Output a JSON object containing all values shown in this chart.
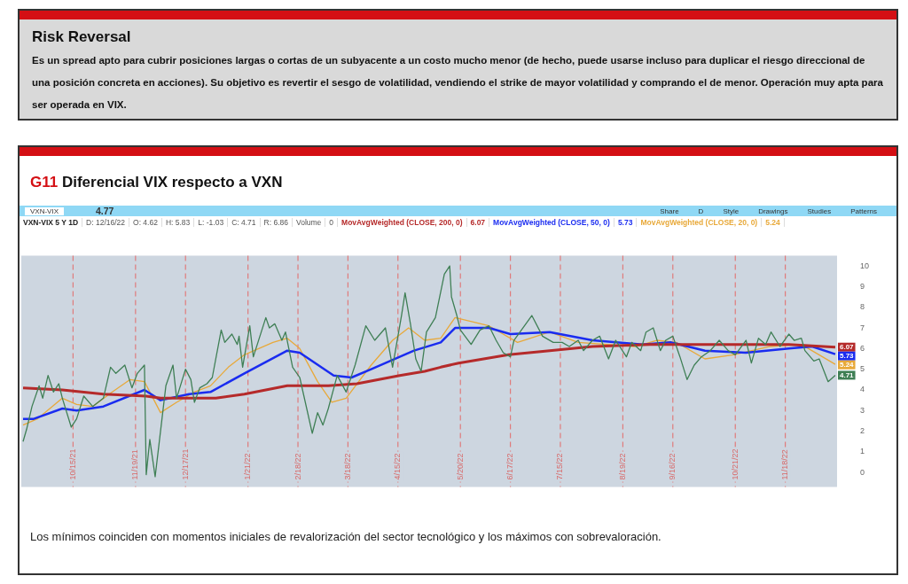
{
  "chart_data": [
    {
      "type": "other",
      "title": "Risk Reversal",
      "annotations": [
        "Es un spread apto para cubrir posiciones largas o cortas de un subyacente a un costo mucho menor (de hecho, puede usarse incluso para duplicar el riesgo direccional de una posición concreta en acciones). Su objetivo es revertir el sesgo de volatilidad, vendiendo el strike de mayor volatilidad y comprando el de menor. Operación muy apta para ser operada en VIX."
      ]
    },
    {
      "type": "line",
      "title": "G11 Diferencial VIX respecto a VXN",
      "annotations": [
        "VXN-VIX",
        "4.77",
        "Share",
        "D",
        "Style",
        "Drawings",
        "Studies",
        "Patterns",
        "VXN-VIX 5 Y 1D",
        "D: 12/16/22",
        "O: 4.62",
        "H: 5.83",
        "L: -1.03",
        "C: 4.71",
        "R: 6.86",
        "Volume",
        "0",
        "Los mínimos coinciden con momentos iniciales de revalorización del sector tecnológico y los máximos con sobrevaloración."
      ],
      "xlim": [
        "2021-09-16",
        "2022-12-17"
      ],
      "xticks": [
        {
          "value": "2021-10-15",
          "label": "10/15/21"
        },
        {
          "value": "2021-11-19",
          "label": "11/19/21"
        },
        {
          "value": "2021-12-17",
          "label": "12/17/21"
        },
        {
          "value": "2022-01-21",
          "label": "1/21/22"
        },
        {
          "value": "2022-02-18",
          "label": "2/18/22"
        },
        {
          "value": "2022-03-18",
          "label": "3/18/22"
        },
        {
          "value": "2022-04-15",
          "label": "4/15/22"
        },
        {
          "value": "2022-05-20",
          "label": "5/20/22"
        },
        {
          "value": "2022-06-17",
          "label": "6/17/22"
        },
        {
          "value": "2022-07-15",
          "label": "7/15/22"
        },
        {
          "value": "2022-08-19",
          "label": "8/19/22"
        },
        {
          "value": "2022-09-16",
          "label": "9/16/22"
        },
        {
          "value": "2022-10-21",
          "label": "10/21/22"
        },
        {
          "value": "2022-11-18",
          "label": "11/18/22"
        }
      ],
      "ylim": [
        -0.7,
        10.5
      ],
      "yticks": [
        0,
        1,
        2,
        3,
        4,
        5,
        6,
        7,
        8,
        9,
        10
      ],
      "legend": "top",
      "ref_lines": [
        {
          "axis": "x",
          "value": "2021-10-15",
          "color": "#e07b7b",
          "line_style": "dashed"
        },
        {
          "axis": "x",
          "value": "2021-11-19",
          "color": "#e07b7b",
          "line_style": "dashed"
        },
        {
          "axis": "x",
          "value": "2021-12-17",
          "color": "#e07b7b",
          "line_style": "dashed"
        },
        {
          "axis": "x",
          "value": "2022-01-21",
          "color": "#e07b7b",
          "line_style": "dashed"
        },
        {
          "axis": "x",
          "value": "2022-02-18",
          "color": "#e07b7b",
          "line_style": "dashed"
        },
        {
          "axis": "x",
          "value": "2022-03-18",
          "color": "#e07b7b",
          "line_style": "dashed"
        },
        {
          "axis": "x",
          "value": "2022-04-15",
          "color": "#e07b7b",
          "line_style": "dashed"
        },
        {
          "axis": "x",
          "value": "2022-05-20",
          "color": "#e07b7b",
          "line_style": "dashed"
        },
        {
          "axis": "x",
          "value": "2022-06-17",
          "color": "#e07b7b",
          "line_style": "dashed"
        },
        {
          "axis": "x",
          "value": "2022-07-15",
          "color": "#e07b7b",
          "line_style": "dashed"
        },
        {
          "axis": "x",
          "value": "2022-08-19",
          "color": "#e07b7b",
          "line_style": "dashed"
        },
        {
          "axis": "x",
          "value": "2022-09-16",
          "color": "#e07b7b",
          "line_style": "dashed"
        },
        {
          "axis": "x",
          "value": "2022-10-21",
          "color": "#e07b7b",
          "line_style": "dashed"
        },
        {
          "axis": "x",
          "value": "2022-11-18",
          "color": "#e07b7b",
          "line_style": "dashed"
        }
      ],
      "series": [
        {
          "color": "#3f7f55",
          "x": [
            "2021-09-17",
            "2021-09-19",
            "2021-09-22",
            "2021-09-26",
            "2021-09-28",
            "2021-10-01",
            "2021-10-04",
            "2021-10-07",
            "2021-10-09",
            "2021-10-14",
            "2021-10-17",
            "2021-10-21",
            "2021-10-26",
            "2021-11-01",
            "2021-11-05",
            "2021-11-08",
            "2021-11-13",
            "2021-11-17",
            "2021-11-20",
            "2021-11-24",
            "2021-11-25",
            "2021-11-27",
            "2021-11-30",
            "2021-12-06",
            "2021-12-10",
            "2021-12-12",
            "2021-12-17",
            "2021-12-20",
            "2021-12-22",
            "2021-12-25",
            "2021-12-29",
            "2022-01-01",
            "2022-01-06",
            "2022-01-08",
            "2022-01-12",
            "2022-01-15",
            "2022-01-16",
            "2022-01-18",
            "2022-01-22",
            "2022-01-24",
            "2022-01-31",
            "2022-02-02",
            "2022-02-05",
            "2022-02-09",
            "2022-02-11",
            "2022-02-15",
            "2022-02-19",
            "2022-02-26",
            "2022-03-01",
            "2022-03-04",
            "2022-03-07",
            "2022-03-12",
            "2022-03-17",
            "2022-03-22",
            "2022-03-28",
            "2022-04-02",
            "2022-04-08",
            "2022-04-12",
            "2022-04-17",
            "2022-04-19",
            "2022-04-22",
            "2022-04-25",
            "2022-04-28",
            "2022-05-01",
            "2022-05-06",
            "2022-05-11",
            "2022-05-14",
            "2022-05-15",
            "2022-05-18",
            "2022-05-20",
            "2022-05-26",
            "2022-05-31",
            "2022-06-05",
            "2022-06-09",
            "2022-06-13",
            "2022-06-17",
            "2022-06-19",
            "2022-06-29",
            "2022-07-05",
            "2022-07-11",
            "2022-07-16",
            "2022-07-20",
            "2022-07-25",
            "2022-07-28",
            "2022-08-02",
            "2022-08-06",
            "2022-08-11",
            "2022-08-15",
            "2022-08-21",
            "2022-08-24",
            "2022-08-29",
            "2022-09-01",
            "2022-09-05",
            "2022-09-09",
            "2022-09-12",
            "2022-09-16",
            "2022-09-20",
            "2022-09-24",
            "2022-09-28",
            "2022-10-02",
            "2022-10-07",
            "2022-10-12",
            "2022-10-17",
            "2022-10-21",
            "2022-10-27",
            "2022-10-30",
            "2022-11-03",
            "2022-11-07",
            "2022-11-10",
            "2022-11-15",
            "2022-11-20",
            "2022-11-23",
            "2022-11-27",
            "2022-11-29",
            "2022-12-04",
            "2022-12-07",
            "2022-12-12",
            "2022-12-16"
          ],
          "values": [
            1.5,
            2.1,
            3.2,
            4.2,
            3.6,
            4.7,
            3.9,
            4.3,
            3.6,
            2.2,
            2.6,
            3.7,
            3.2,
            3.6,
            5.1,
            4.8,
            5.2,
            4.1,
            4.8,
            5.2,
            -0.1,
            1.6,
            -0.2,
            4.2,
            5.2,
            3.6,
            5.0,
            4.5,
            3.4,
            4.1,
            4.3,
            4.6,
            6.9,
            6.3,
            6.7,
            6.2,
            6.6,
            5.1,
            7.1,
            5.6,
            7.5,
            7.0,
            7.2,
            6.4,
            6.8,
            5.1,
            4.6,
            1.9,
            2.9,
            2.3,
            3.1,
            4.7,
            3.9,
            5.2,
            7.1,
            6.4,
            7.0,
            5.1,
            7.6,
            8.7,
            7.2,
            5.5,
            4.9,
            6.8,
            7.5,
            9.6,
            10.0,
            8.5,
            7.6,
            6.9,
            6.2,
            6.9,
            7.1,
            6.4,
            5.8,
            5.6,
            6.4,
            7.6,
            6.6,
            6.3,
            6.3,
            6.1,
            6.4,
            5.9,
            6.4,
            6.6,
            5.5,
            6.4,
            5.6,
            6.3,
            5.9,
            6.8,
            7.0,
            5.9,
            6.4,
            6.6,
            5.6,
            4.5,
            5.2,
            5.6,
            5.9,
            6.4,
            5.9,
            5.7,
            6.4,
            5.3,
            6.5,
            6.2,
            6.8,
            6.1,
            6.7,
            6.4,
            6.5,
            5.9,
            5.4,
            5.5,
            4.4,
            4.71
          ],
          "value_labels": [
            null,
            null,
            null,
            null,
            null,
            null,
            null,
            null,
            null,
            null,
            null,
            null,
            null,
            null,
            null,
            null,
            null,
            null,
            null,
            null,
            null,
            null,
            null,
            null,
            null,
            null,
            null,
            null,
            null,
            null,
            null,
            null,
            null,
            null,
            null,
            null,
            null,
            null,
            null,
            null,
            null,
            null,
            null,
            null,
            null,
            null,
            null,
            null,
            null,
            null,
            null,
            null,
            null,
            null,
            null,
            null,
            null,
            null,
            null,
            null,
            null,
            null,
            null,
            null,
            null,
            null,
            null,
            null,
            null,
            null,
            null,
            null,
            null,
            null,
            null,
            null,
            null,
            null,
            null,
            null,
            null,
            null,
            null,
            null,
            null,
            null,
            null,
            null,
            null,
            null,
            null,
            null,
            null,
            null,
            null,
            null,
            null,
            null,
            null,
            null,
            null,
            null,
            null,
            null,
            null,
            null,
            null,
            null,
            null,
            null,
            null,
            null,
            null,
            null,
            null,
            null,
            null,
            "4.71"
          ]
        },
        {
          "name": "MovAvgWeighted (CLOSE, 200, 0)",
          "color": "#b52a2a",
          "x": [
            "2021-09-17",
            "2021-10-09",
            "2021-11-01",
            "2021-11-25",
            "2021-12-03",
            "2022-01-03",
            "2022-01-19",
            "2022-02-12",
            "2022-03-07",
            "2022-03-23",
            "2022-04-16",
            "2022-04-30",
            "2022-05-09",
            "2022-05-19",
            "2022-06-16",
            "2022-07-09",
            "2022-08-02",
            "2022-09-03",
            "2022-10-04",
            "2022-11-20",
            "2022-12-16"
          ],
          "values": [
            4.1,
            4.0,
            3.8,
            3.7,
            3.6,
            3.6,
            3.8,
            4.2,
            4.2,
            4.3,
            4.7,
            4.9,
            5.1,
            5.3,
            5.7,
            5.9,
            6.1,
            6.2,
            6.2,
            6.2,
            6.07
          ],
          "value_labels": [
            null,
            null,
            null,
            null,
            null,
            null,
            null,
            null,
            null,
            null,
            null,
            null,
            null,
            null,
            null,
            null,
            null,
            null,
            null,
            null,
            "6.07"
          ]
        },
        {
          "name": "MovAvgWeighted (CLOSE, 50, 0)",
          "color": "#1a2cf0",
          "x": [
            "2021-09-17",
            "2021-09-23",
            "2021-10-09",
            "2021-10-17",
            "2021-11-01",
            "2021-11-24",
            "2021-12-03",
            "2021-12-19",
            "2021-12-31",
            "2022-01-19",
            "2022-02-12",
            "2022-02-19",
            "2022-03-10",
            "2022-03-20",
            "2022-03-31",
            "2022-04-24",
            "2022-05-09",
            "2022-05-17",
            "2022-06-05",
            "2022-06-17",
            "2022-07-09",
            "2022-08-02",
            "2022-08-30",
            "2022-09-15",
            "2022-10-04",
            "2022-10-27",
            "2022-11-20",
            "2022-12-03",
            "2022-12-16"
          ],
          "values": [
            2.6,
            2.6,
            3.1,
            3.0,
            3.2,
            4.0,
            3.5,
            3.8,
            3.9,
            4.8,
            5.9,
            5.8,
            4.7,
            4.6,
            5.0,
            5.9,
            6.3,
            7.0,
            7.0,
            6.7,
            6.8,
            6.4,
            6.2,
            6.3,
            5.9,
            5.8,
            6.0,
            6.1,
            5.73
          ],
          "value_labels": [
            null,
            null,
            null,
            null,
            null,
            null,
            null,
            null,
            null,
            null,
            null,
            null,
            null,
            null,
            null,
            null,
            null,
            null,
            null,
            null,
            null,
            null,
            null,
            null,
            null,
            null,
            null,
            null,
            "5.73"
          ]
        },
        {
          "name": "MovAvgWeighted (CLOSE, 20, 0)",
          "color": "#e8a93a",
          "x": [
            "2021-09-17",
            "2021-09-25",
            "2021-10-09",
            "2021-10-17",
            "2021-10-26",
            "2021-11-06",
            "2021-11-16",
            "2021-11-24",
            "2021-12-03",
            "2021-12-12",
            "2021-12-22",
            "2021-12-31",
            "2022-01-10",
            "2022-01-19",
            "2022-02-04",
            "2022-02-12",
            "2022-02-19",
            "2022-03-01",
            "2022-03-09",
            "2022-03-17",
            "2022-03-31",
            "2022-04-12",
            "2022-04-21",
            "2022-04-30",
            "2022-05-09",
            "2022-05-17",
            "2022-06-05",
            "2022-06-21",
            "2022-07-09",
            "2022-07-25",
            "2022-08-26",
            "2022-09-07",
            "2022-09-18",
            "2022-10-04",
            "2022-10-20",
            "2022-11-09",
            "2022-11-27",
            "2022-12-16"
          ],
          "values": [
            2.3,
            2.6,
            3.6,
            3.3,
            3.2,
            3.9,
            4.5,
            4.4,
            2.9,
            3.4,
            3.9,
            4.2,
            5.1,
            5.7,
            6.3,
            6.5,
            6.0,
            4.4,
            3.4,
            3.6,
            5.2,
            6.4,
            7.0,
            6.4,
            6.5,
            7.5,
            7.1,
            6.3,
            6.8,
            6.3,
            6.1,
            6.4,
            6.3,
            5.5,
            5.7,
            6.1,
            6.2,
            5.24
          ],
          "value_labels": [
            null,
            null,
            null,
            null,
            null,
            null,
            null,
            null,
            null,
            null,
            null,
            null,
            null,
            null,
            null,
            null,
            null,
            null,
            null,
            null,
            null,
            null,
            null,
            null,
            null,
            null,
            null,
            null,
            null,
            null,
            null,
            null,
            null,
            null,
            null,
            null,
            null,
            "5.24"
          ]
        }
      ]
    }
  ]
}
